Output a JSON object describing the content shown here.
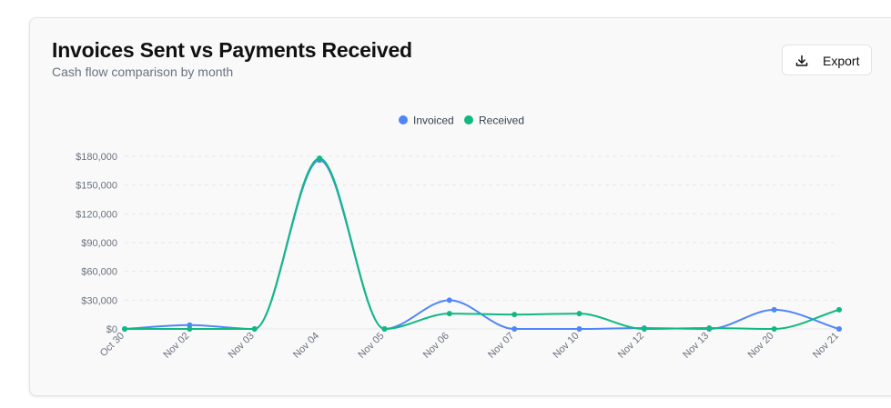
{
  "header": {
    "title": "Invoices Sent vs Payments Received",
    "subtitle": "Cash flow comparison by month"
  },
  "toolbar": {
    "export_label": "Export",
    "export_icon": "download-icon"
  },
  "chart_data": {
    "type": "line",
    "title": "Invoices Sent vs Payments Received",
    "subtitle": "Cash flow comparison by month",
    "categories": [
      "Oct 30",
      "Nov 02",
      "Nov 03",
      "Nov 04",
      "Nov 05",
      "Nov 06",
      "Nov 07",
      "Nov 10",
      "Nov 12",
      "Nov 13",
      "Nov 20",
      "Nov 21"
    ],
    "series": [
      {
        "name": "Invoiced",
        "color": "#4f86f7",
        "values": [
          0,
          4000,
          0,
          176000,
          0,
          30000,
          0,
          0,
          1000,
          0,
          20000,
          0
        ]
      },
      {
        "name": "Received",
        "color": "#10b981",
        "values": [
          0,
          0,
          0,
          178000,
          0,
          16000,
          15000,
          16000,
          0,
          1000,
          0,
          20000
        ]
      }
    ],
    "yticks": [
      0,
      30000,
      60000,
      90000,
      120000,
      150000,
      180000
    ],
    "ytick_labels": [
      "$0",
      "$30,000",
      "$60,000",
      "$90,000",
      "$120,000",
      "$150,000",
      "$180,000"
    ],
    "ylim": [
      0,
      180000
    ],
    "grid": true,
    "legend": "top-center",
    "curve": "smooth"
  }
}
